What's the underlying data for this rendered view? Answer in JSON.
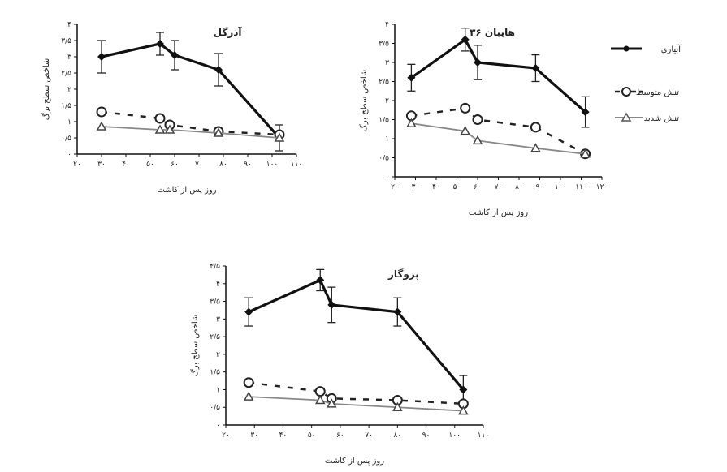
{
  "legend": {
    "items": [
      {
        "label": "آبیاری",
        "series_key": "irrigated"
      },
      {
        "label": "تنش متوسط",
        "series_key": "moderate"
      },
      {
        "label": "تنش شدید",
        "series_key": "severe"
      }
    ]
  },
  "chart_data": [
    {
      "type": "line",
      "title": "آذرگل",
      "xlabel": "روز پس از کاشت",
      "ylabel": "شاخص سطح برگ",
      "xlim": [
        20,
        110
      ],
      "ylim": [
        0,
        4
      ],
      "xticks": [
        20,
        30,
        40,
        50,
        60,
        70,
        80,
        90,
        100,
        110
      ],
      "xtick_labels": [
        "۲۰",
        "۳۰",
        "۴۰",
        "۵۰",
        "۶۰",
        "۷۰",
        "۸۰",
        "۹۰",
        "۱۰۰",
        "۱۱۰"
      ],
      "yticks": [
        0,
        0.5,
        1,
        1.5,
        2,
        2.5,
        3,
        3.5,
        4
      ],
      "ytick_labels": [
        "۰",
        "۰/۵",
        "۱",
        "۱/۵",
        "۲",
        "۲/۵",
        "۳",
        "۳/۵",
        "۴"
      ],
      "series": [
        {
          "key": "irrigated",
          "name": "آبیاری",
          "x": [
            30,
            54,
            60,
            78,
            103
          ],
          "y": [
            3.0,
            3.4,
            3.05,
            2.6,
            0.5
          ],
          "err": [
            0.5,
            0.35,
            0.45,
            0.5,
            0.4
          ]
        },
        {
          "key": "moderate",
          "name": "تنش متوسط",
          "x": [
            30,
            54,
            58,
            78,
            103
          ],
          "y": [
            1.3,
            1.1,
            0.9,
            0.7,
            0.6
          ],
          "err": [
            0,
            0,
            0,
            0,
            0
          ]
        },
        {
          "key": "severe",
          "name": "تنش شدید",
          "x": [
            30,
            54,
            58,
            78,
            103
          ],
          "y": [
            0.85,
            0.75,
            0.75,
            0.65,
            0.5
          ],
          "err": [
            0,
            0,
            0,
            0,
            0
          ]
        }
      ]
    },
    {
      "type": "line",
      "title": "هایبان ۳۶",
      "xlabel": "روز پس از کاشت",
      "ylabel": "شاخص سطح برگ",
      "xlim": [
        20,
        120
      ],
      "ylim": [
        0,
        4
      ],
      "xticks": [
        20,
        30,
        40,
        50,
        60,
        70,
        80,
        90,
        100,
        110,
        120
      ],
      "xtick_labels": [
        "۲۰",
        "۳۰",
        "۴۰",
        "۵۰",
        "۶۰",
        "۷۰",
        "۸۰",
        "۹۰",
        "۱۰۰",
        "۱۱۰",
        "۱۲۰"
      ],
      "yticks": [
        0,
        0.5,
        1,
        1.5,
        2,
        2.5,
        3,
        3.5,
        4
      ],
      "ytick_labels": [
        "۰",
        "۰/۵",
        "۱",
        "۱/۵",
        "۲",
        "۲/۵",
        "۳",
        "۳/۵",
        "۴"
      ],
      "series": [
        {
          "key": "irrigated",
          "name": "آبیاری",
          "x": [
            28,
            54,
            60,
            88,
            112
          ],
          "y": [
            2.6,
            3.6,
            3.0,
            2.85,
            1.7
          ],
          "err": [
            0.35,
            0.3,
            0.45,
            0.35,
            0.4
          ]
        },
        {
          "key": "moderate",
          "name": "تنش متوسط",
          "x": [
            28,
            54,
            60,
            88,
            112
          ],
          "y": [
            1.6,
            1.8,
            1.5,
            1.3,
            0.6
          ],
          "err": [
            0,
            0,
            0,
            0,
            0
          ]
        },
        {
          "key": "severe",
          "name": "تنش شدید",
          "x": [
            28,
            54,
            60,
            88,
            112
          ],
          "y": [
            1.4,
            1.2,
            0.95,
            0.75,
            0.6
          ],
          "err": [
            0,
            0,
            0,
            0,
            0
          ]
        }
      ]
    },
    {
      "type": "line",
      "title": "پروگاز",
      "xlabel": "روز پس از کاشت",
      "ylabel": "شاخص سطح برگ",
      "xlim": [
        20,
        110
      ],
      "ylim": [
        0,
        4.5
      ],
      "xticks": [
        20,
        30,
        40,
        50,
        60,
        70,
        80,
        90,
        100,
        110
      ],
      "xtick_labels": [
        "۲۰",
        "۳۰",
        "۴۰",
        "۵۰",
        "۶۰",
        "۷۰",
        "۸۰",
        "۹۰",
        "۱۰۰",
        "۱۱۰"
      ],
      "yticks": [
        0,
        0.5,
        1,
        1.5,
        2,
        2.5,
        3,
        3.5,
        4,
        4.5
      ],
      "ytick_labels": [
        "۰",
        "۰/۵",
        "۱",
        "۱/۵",
        "۲",
        "۲/۵",
        "۳",
        "۳/۵",
        "۴",
        "۴/۵"
      ],
      "series": [
        {
          "key": "irrigated",
          "name": "آبیاری",
          "x": [
            28,
            53,
            57,
            80,
            103
          ],
          "y": [
            3.2,
            4.1,
            3.4,
            3.2,
            1.0
          ],
          "err": [
            0.4,
            0.3,
            0.5,
            0.4,
            0.4
          ]
        },
        {
          "key": "moderate",
          "name": "تنش متوسط",
          "x": [
            28,
            53,
            57,
            80,
            103
          ],
          "y": [
            1.2,
            0.95,
            0.75,
            0.7,
            0.6
          ],
          "err": [
            0,
            0,
            0,
            0,
            0
          ]
        },
        {
          "key": "severe",
          "name": "تنش شدید",
          "x": [
            28,
            53,
            57,
            80,
            103
          ],
          "y": [
            0.8,
            0.7,
            0.6,
            0.5,
            0.4
          ],
          "err": [
            0,
            0,
            0,
            0,
            0
          ]
        }
      ]
    }
  ],
  "colors": {
    "irrigated": "#111111",
    "moderate": "#222222",
    "severe": "#888888",
    "axis": "#111111"
  }
}
